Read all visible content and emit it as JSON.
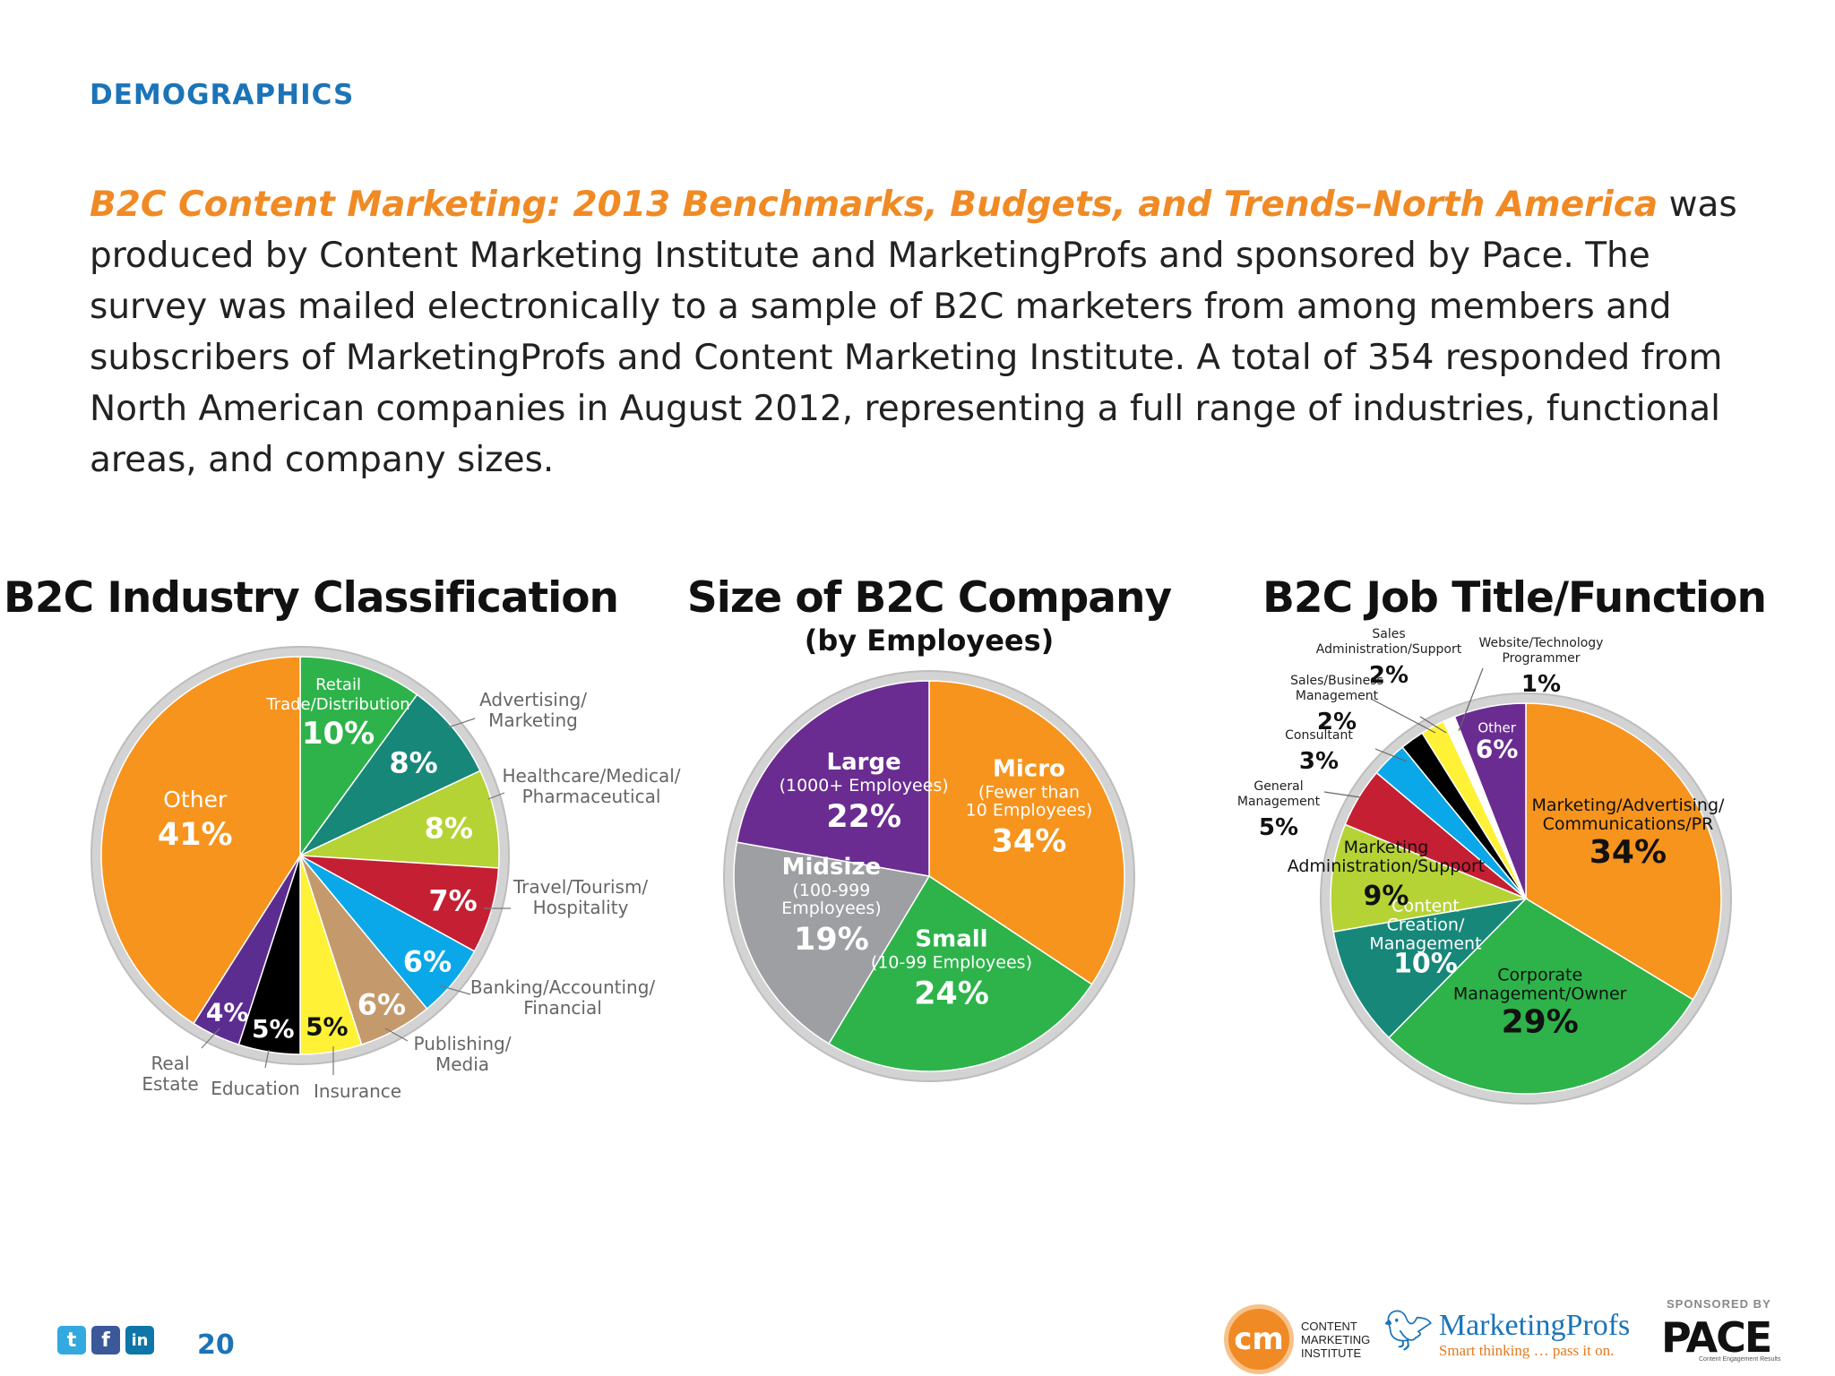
{
  "header": {
    "section": "DEMOGRAPHICS"
  },
  "intro": {
    "report_title": "B2C Content Marketing: 2013 Benchmarks, Budgets, and Trends–North America",
    "body": " was produced by Content Marketing Institute and MarketingProfs and sponsored by Pace. The survey was mailed electronically to a sample of B2C marketers from among members and subscribers of MarketingProfs and Content Marketing Institute. A total of 354 responded from North American companies in August 2012, representing a full range of industries, functional areas, and company sizes."
  },
  "chart_data": [
    {
      "type": "pie",
      "title": "B2C Industry Classification",
      "subtitle": "",
      "slices": [
        {
          "label": "Retail Trade/Distribution",
          "value": 10,
          "value_label": "10%",
          "color": "#2db34a"
        },
        {
          "label": "Advertising/ Marketing",
          "value": 8,
          "value_label": "8%",
          "color": "#17877a"
        },
        {
          "label": "Healthcare/Medical/ Pharmaceutical",
          "value": 8,
          "value_label": "8%",
          "color": "#b5d334"
        },
        {
          "label": "Travel/Tourism/ Hospitality",
          "value": 7,
          "value_label": "7%",
          "color": "#c41f33"
        },
        {
          "label": "Banking/Accounting/ Financial",
          "value": 6,
          "value_label": "6%",
          "color": "#0aa8e8"
        },
        {
          "label": "Publishing/ Media",
          "value": 6,
          "value_label": "6%",
          "color": "#c49a6c"
        },
        {
          "label": "Insurance",
          "value": 5,
          "value_label": "5%",
          "color": "#fff135"
        },
        {
          "label": "Education",
          "value": 5,
          "value_label": "5%",
          "color": "#000000"
        },
        {
          "label": "Real Estate",
          "value": 4,
          "value_label": "4%",
          "color": "#5c2d91"
        },
        {
          "label": "Other",
          "value": 41,
          "value_label": "41%",
          "color": "#f7941d"
        }
      ]
    },
    {
      "type": "pie",
      "title": "Size of B2C Company",
      "subtitle": "(by Employees)",
      "slices": [
        {
          "label": "Micro",
          "sublabel": "(Fewer than 10 Employees)",
          "value": 34,
          "value_label": "34%",
          "color": "#f7941d"
        },
        {
          "label": "Small",
          "sublabel": "(10-99 Employees)",
          "value": 24,
          "value_label": "24%",
          "color": "#2db34a"
        },
        {
          "label": "Midsize",
          "sublabel": "(100-999 Employees)",
          "value": 19,
          "value_label": "19%",
          "color": "#9e9fa2"
        },
        {
          "label": "Large",
          "sublabel": "(1000+ Employees)",
          "value": 22,
          "value_label": "22%",
          "color": "#6a2c91"
        }
      ]
    },
    {
      "type": "pie",
      "title": "B2C Job Title/Function",
      "subtitle": "",
      "slices": [
        {
          "label": "Marketing/Advertising/ Communications/PR",
          "value": 34,
          "value_label": "34%",
          "color": "#f7941d"
        },
        {
          "label": "Corporate Management/Owner",
          "value": 29,
          "value_label": "29%",
          "color": "#2db34a"
        },
        {
          "label": "Content Creation/ Management",
          "value": 10,
          "value_label": "10%",
          "color": "#17877a"
        },
        {
          "label": "Marketing Administration/Support",
          "value": 9,
          "value_label": "9%",
          "color": "#b5d334"
        },
        {
          "label": "General Management",
          "value": 5,
          "value_label": "5%",
          "color": "#c41f33"
        },
        {
          "label": "Consultant",
          "value": 3,
          "value_label": "3%",
          "color": "#0aa8e8"
        },
        {
          "label": "Sales/Business Management",
          "value": 2,
          "value_label": "2%",
          "color": "#000000"
        },
        {
          "label": "Sales Administration/Support",
          "value": 2,
          "value_label": "2%",
          "color": "#fff135"
        },
        {
          "label": "Website/Technology Programmer",
          "value": 1,
          "value_label": "1%",
          "color": "#ffffff"
        },
        {
          "label": "Other",
          "value": 6,
          "value_label": "6%",
          "color": "#6a2c91"
        }
      ]
    }
  ],
  "footer": {
    "social": [
      "t",
      "f",
      "in"
    ],
    "page_number": "20",
    "cmi_logo_text": "cm",
    "cmi_name": [
      "CONTENT",
      "MARKETING",
      "INSTITUTE"
    ],
    "mp_name": "MarketingProfs",
    "mp_tagline": "Smart thinking … pass it on.",
    "sponsor_label": "SPONSORED BY",
    "sponsor_name": "PACE",
    "sponsor_tagline": "Content Engagement Results"
  }
}
